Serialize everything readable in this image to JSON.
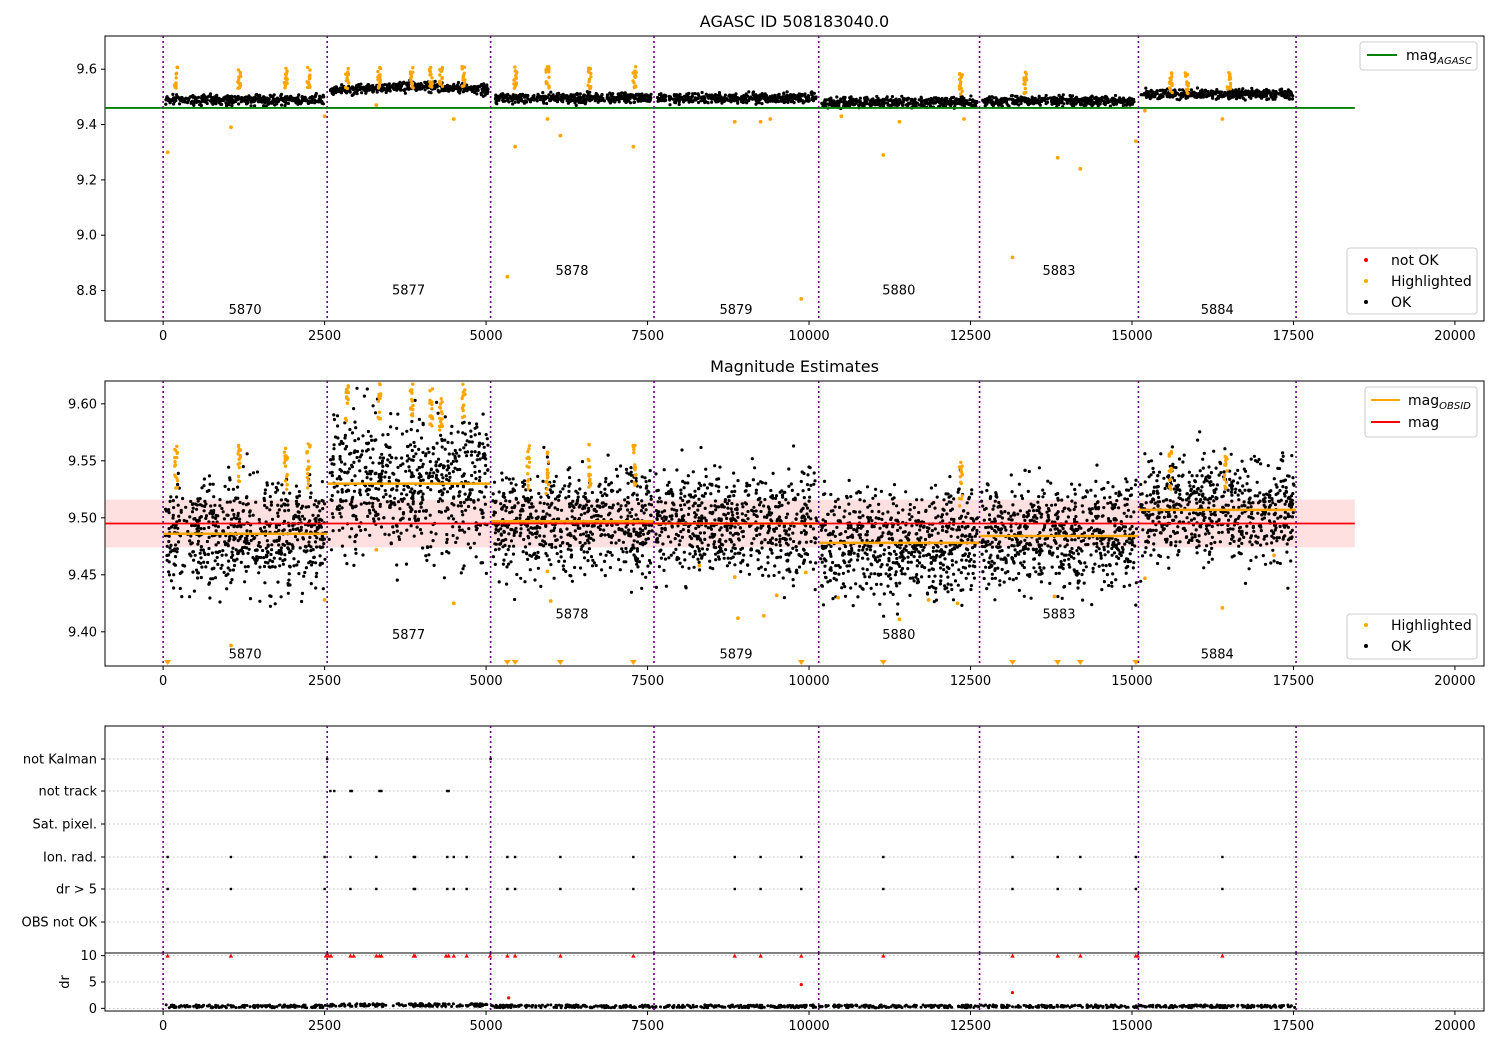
{
  "chart_data": [
    {
      "type": "scatter",
      "title": "AGASC ID 508183040.0",
      "xlim": [
        -900,
        20450
      ],
      "ylim": [
        8.69,
        9.72
      ],
      "x_ticks": [
        0,
        2500,
        5000,
        7500,
        10000,
        12500,
        15000,
        17500,
        20000
      ],
      "y_ticks": [
        8.8,
        9.0,
        9.2,
        9.4,
        9.6
      ],
      "y_tick_labels": [
        "8.8",
        "9.0",
        "9.2",
        "9.4",
        "9.6"
      ],
      "obsid_boundaries": [
        0,
        2540,
        5070,
        7600,
        10150,
        12640,
        15100,
        17540
      ],
      "obsids": [
        {
          "label": "5870",
          "x": 1270,
          "y": 8.73
        },
        {
          "label": "5877",
          "x": 3800,
          "y": 8.8
        },
        {
          "label": "5878",
          "x": 6330,
          "y": 8.87
        },
        {
          "label": "5879",
          "x": 8870,
          "y": 8.73
        },
        {
          "label": "5880",
          "x": 11390,
          "y": 8.8
        },
        {
          "label": "5883",
          "x": 13870,
          "y": 8.87
        },
        {
          "label": "5884",
          "x": 16320,
          "y": 8.73
        }
      ],
      "ok_band": [
        {
          "x0": 0,
          "x1": 2540,
          "y": 9.49
        },
        {
          "x0": 2540,
          "x1": 5070,
          "y": 9.53
        },
        {
          "x0": 5070,
          "x1": 7600,
          "y": 9.495
        },
        {
          "x0": 7600,
          "x1": 10150,
          "y": 9.495
        },
        {
          "x0": 10150,
          "x1": 12640,
          "y": 9.48
        },
        {
          "x0": 12640,
          "x1": 15100,
          "y": 9.485
        },
        {
          "x0": 15100,
          "x1": 17540,
          "y": 9.51
        }
      ],
      "mag_agasc": {
        "value": 9.46,
        "x0": -900,
        "x1": 18450,
        "color": "#008000"
      },
      "highlighted_outliers": [
        {
          "x": 70,
          "y": 9.3
        },
        {
          "x": 1050,
          "y": 9.39
        },
        {
          "x": 2500,
          "y": 9.43
        },
        {
          "x": 3300,
          "y": 9.47
        },
        {
          "x": 4500,
          "y": 9.42
        },
        {
          "x": 5330,
          "y": 8.85
        },
        {
          "x": 5450,
          "y": 9.32
        },
        {
          "x": 5950,
          "y": 9.42
        },
        {
          "x": 6150,
          "y": 9.36
        },
        {
          "x": 7280,
          "y": 9.32
        },
        {
          "x": 8850,
          "y": 9.41
        },
        {
          "x": 9250,
          "y": 9.41
        },
        {
          "x": 9400,
          "y": 9.42
        },
        {
          "x": 9880,
          "y": 8.77
        },
        {
          "x": 10500,
          "y": 9.43
        },
        {
          "x": 11150,
          "y": 9.29
        },
        {
          "x": 11400,
          "y": 9.41
        },
        {
          "x": 12400,
          "y": 9.42
        },
        {
          "x": 13150,
          "y": 8.92
        },
        {
          "x": 13850,
          "y": 9.28
        },
        {
          "x": 14200,
          "y": 9.24
        },
        {
          "x": 15060,
          "y": 9.34
        },
        {
          "x": 15200,
          "y": 9.45
        },
        {
          "x": 16400,
          "y": 9.42
        }
      ],
      "legends": [
        {
          "position": "upper-right",
          "entries": [
            {
              "label": "mag",
              "subscript": "AGASC",
              "marker": "line",
              "color": "#008000"
            }
          ]
        },
        {
          "position": "lower-right",
          "entries": [
            {
              "label": "not OK",
              "marker": "dot",
              "color": "#ff0000"
            },
            {
              "label": "Highlighted",
              "marker": "dot",
              "color": "#ffa500"
            },
            {
              "label": "OK",
              "marker": "dot",
              "color": "#000000"
            }
          ]
        }
      ]
    },
    {
      "type": "scatter",
      "title": "Magnitude Estimates",
      "xlim": [
        -900,
        20450
      ],
      "ylim": [
        9.37,
        9.62
      ],
      "x_ticks": [
        0,
        2500,
        5000,
        7500,
        10000,
        12500,
        15000,
        17500,
        20000
      ],
      "y_ticks": [
        9.4,
        9.45,
        9.5,
        9.55,
        9.6
      ],
      "y_tick_labels": [
        "9.40",
        "9.45",
        "9.50",
        "9.55",
        "9.60"
      ],
      "obsid_boundaries": [
        0,
        2540,
        5070,
        7600,
        10150,
        12640,
        15100,
        17540
      ],
      "obsids": [
        {
          "label": "5870",
          "x": 1270,
          "y": 9.38
        },
        {
          "label": "5877",
          "x": 3800,
          "y": 9.397
        },
        {
          "label": "5878",
          "x": 6330,
          "y": 9.415
        },
        {
          "label": "5879",
          "x": 8870,
          "y": 9.38
        },
        {
          "label": "5880",
          "x": 11390,
          "y": 9.397
        },
        {
          "label": "5883",
          "x": 13870,
          "y": 9.415
        },
        {
          "label": "5884",
          "x": 16320,
          "y": 9.38
        }
      ],
      "mag": {
        "value": 9.495,
        "band": [
          9.474,
          9.516
        ],
        "x0": -900,
        "x1": 18450,
        "color": "#ff0000"
      },
      "mag_obsid": [
        {
          "obsid": "5870",
          "x0": 0,
          "x1": 2540,
          "value": 9.486
        },
        {
          "obsid": "5877",
          "x0": 2540,
          "x1": 5070,
          "value": 9.53
        },
        {
          "obsid": "5878",
          "x0": 5070,
          "x1": 7600,
          "value": 9.497
        },
        {
          "obsid": "5879",
          "x0": 7600,
          "x1": 10150,
          "value": 9.495
        },
        {
          "obsid": "5880",
          "x0": 10150,
          "x1": 12640,
          "value": 9.478
        },
        {
          "obsid": "5883",
          "x0": 12640,
          "x1": 15100,
          "value": 9.484
        },
        {
          "obsid": "5884",
          "x0": 15100,
          "x1": 17540,
          "value": 9.507
        }
      ],
      "highlighted_outliers": [
        {
          "x": 1050,
          "y": 9.388
        },
        {
          "x": 2500,
          "y": 9.428
        },
        {
          "x": 3300,
          "y": 9.472
        },
        {
          "x": 4500,
          "y": 9.425
        },
        {
          "x": 5950,
          "y": 9.453
        },
        {
          "x": 6000,
          "y": 9.427
        },
        {
          "x": 8300,
          "y": 9.458
        },
        {
          "x": 8850,
          "y": 9.448
        },
        {
          "x": 8900,
          "y": 9.412
        },
        {
          "x": 9300,
          "y": 9.414
        },
        {
          "x": 9500,
          "y": 9.432
        },
        {
          "x": 9950,
          "y": 9.452
        },
        {
          "x": 10450,
          "y": 9.43
        },
        {
          "x": 11400,
          "y": 9.411
        },
        {
          "x": 11850,
          "y": 9.428
        },
        {
          "x": 12300,
          "y": 9.425
        },
        {
          "x": 13800,
          "y": 9.431
        },
        {
          "x": 15200,
          "y": 9.447
        },
        {
          "x": 16400,
          "y": 9.421
        },
        {
          "x": 17200,
          "y": 9.467
        }
      ],
      "offscale_low_markers": [
        70,
        5330,
        5450,
        6150,
        7280,
        9880,
        11150,
        13150,
        13850,
        14200,
        15060
      ],
      "legends": [
        {
          "position": "upper-right",
          "entries": [
            {
              "label": "mag",
              "subscript": "OBSID",
              "marker": "line",
              "color": "#ffa500"
            },
            {
              "label": "mag",
              "subscript": "",
              "marker": "line",
              "color": "#ff0000"
            }
          ]
        },
        {
          "position": "lower-right",
          "entries": [
            {
              "label": "Highlighted",
              "marker": "dot",
              "color": "#ffa500"
            },
            {
              "label": "OK",
              "marker": "dot",
              "color": "#000000"
            }
          ]
        }
      ]
    },
    {
      "type": "scatter",
      "title": "",
      "xlim": [
        -900,
        20450
      ],
      "x_ticks": [
        0,
        2500,
        5000,
        7500,
        10000,
        12500,
        15000,
        17500,
        20000
      ],
      "obsid_boundaries": [
        0,
        2540,
        5070,
        7600,
        10150,
        12640,
        15100,
        17540
      ],
      "flag_rows": [
        "not Kalman",
        "not track",
        "Sat. pixel.",
        "Ion. rad.",
        "dr > 5",
        "OBS not OK"
      ],
      "flag_points": {
        "not Kalman": [
          2540,
          5070
        ],
        "not track": [
          2590,
          2650,
          2900,
          2920,
          3350,
          3380,
          4400,
          4420
        ],
        "Sat. pixel.": [],
        "Ion. rad.": [
          70,
          1050,
          2500,
          2900,
          3300,
          3880,
          3900,
          4400,
          4500,
          4700,
          5330,
          5450,
          6150,
          7280,
          8850,
          9250,
          9880,
          11150,
          13150,
          13850,
          14200,
          15060,
          16400
        ],
        "dr > 5": [
          70,
          1050,
          2500,
          2900,
          3300,
          3880,
          3900,
          4400,
          4500,
          4700,
          5330,
          5450,
          6150,
          7280,
          8850,
          9250,
          9880,
          11150,
          13150,
          13850,
          14200,
          15060,
          16400
        ],
        "OBS not OK": []
      },
      "dr": {
        "ylabel": "dr",
        "ylim": [
          -0.5,
          10.5
        ],
        "y_ticks": [
          0,
          5,
          10
        ],
        "y_tick_labels": [
          "0",
          "5",
          "10"
        ],
        "clipped_value": 10,
        "clipped_x": [
          70,
          1050,
          2520,
          2560,
          2600,
          2900,
          2950,
          3300,
          3350,
          3380,
          3880,
          3900,
          4380,
          4420,
          4500,
          4700,
          5060,
          5330,
          5450,
          6150,
          7280,
          8850,
          9250,
          9880,
          11150,
          13150,
          13850,
          14200,
          15060,
          15090,
          16400
        ],
        "extra_points": [
          {
            "x": 9880,
            "y": 4.5
          },
          {
            "x": 13150,
            "y": 3.0
          },
          {
            "x": 5350,
            "y": 2.0
          }
        ],
        "baseline": 0.3
      }
    }
  ]
}
